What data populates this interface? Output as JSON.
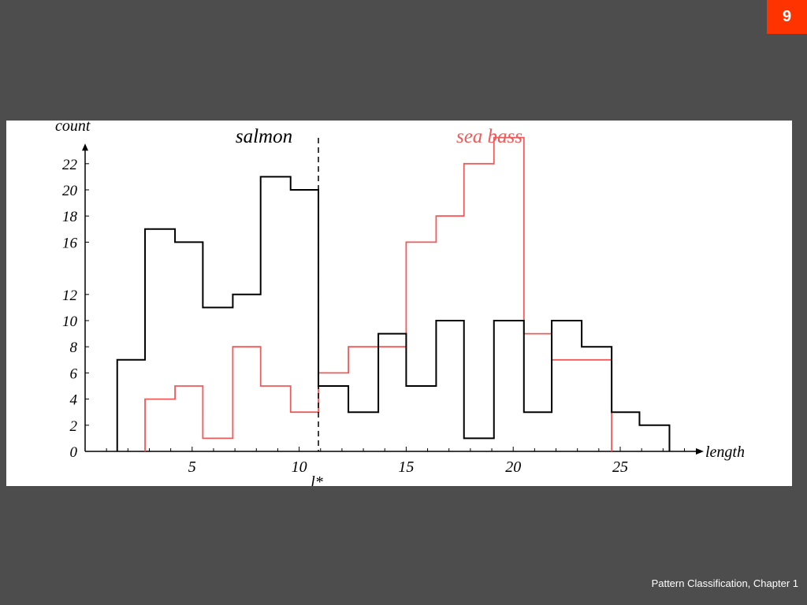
{
  "slide": {
    "page_number": "9",
    "footer": "Pattern Classification, Chapter 1"
  },
  "chart_data": {
    "type": "histogram",
    "title": "",
    "xlabel": "length",
    "ylabel": "count",
    "xlim": [
      0,
      28.5
    ],
    "ylim": [
      0,
      23
    ],
    "x_tick_labels": [
      5,
      10,
      15,
      20,
      25
    ],
    "y_tick_labels": [
      0,
      2,
      4,
      6,
      8,
      10,
      12,
      16,
      18,
      20,
      22
    ],
    "bin_edges": [
      1.5,
      2.8,
      4.2,
      5.5,
      6.9,
      8.2,
      9.6,
      10.9,
      12.3,
      13.7,
      15.0,
      16.4,
      17.7,
      19.1,
      20.5,
      21.8,
      23.2,
      24.6,
      25.9,
      27.3
    ],
    "series": [
      {
        "name": "salmon",
        "color": "#000000",
        "values": [
          7,
          17,
          16,
          11,
          12,
          21,
          20,
          5,
          3,
          9,
          5,
          10,
          1,
          10,
          3,
          10,
          8,
          3,
          2
        ]
      },
      {
        "name": "sea bass",
        "color": "#ef5a5a",
        "values": [
          0,
          4,
          5,
          1,
          8,
          5,
          3,
          6,
          8,
          8,
          16,
          18,
          22,
          24,
          9,
          7,
          7,
          0,
          0
        ]
      }
    ],
    "threshold": {
      "label": "l*",
      "x": 10.9
    },
    "grid": false,
    "legend": "labels above plot"
  }
}
